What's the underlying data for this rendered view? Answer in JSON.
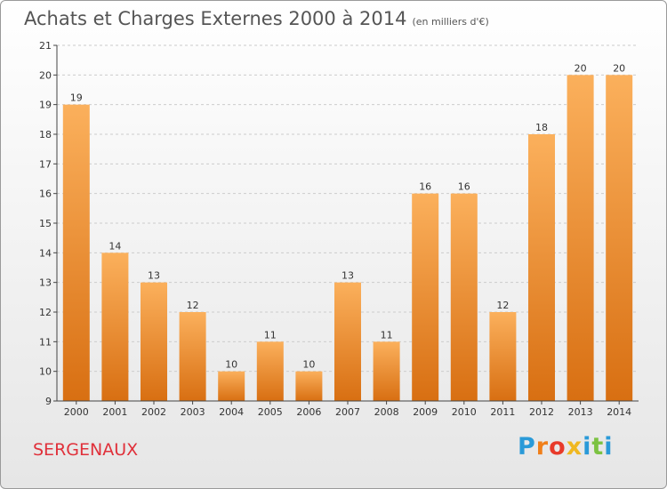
{
  "title": "Achats et Charges Externes 2000 à 2014",
  "subtitle": "(en milliers d'€)",
  "commune": "SERGENAUX",
  "logo": [
    "P",
    "r",
    "o",
    "x",
    "i",
    "t",
    "i"
  ],
  "logo_colors": [
    "#2a9ad8",
    "#f07f1a",
    "#e83a2a",
    "#f0b820",
    "#2a9ad8",
    "#7cc242",
    "#2a9ad8"
  ],
  "colors": {
    "bar_light": "#fbb05c",
    "bar_dark": "#d86f12",
    "axis": "#444444",
    "grid": "#cccccc"
  },
  "chart_data": {
    "type": "bar",
    "title": "Achats et Charges Externes 2000 à 2014",
    "subtitle": "(en milliers d'€)",
    "xlabel": "",
    "ylabel": "",
    "categories": [
      "2000",
      "2001",
      "2002",
      "2003",
      "2004",
      "2005",
      "2006",
      "2007",
      "2008",
      "2009",
      "2010",
      "2011",
      "2012",
      "2013",
      "2014"
    ],
    "values": [
      19,
      14,
      13,
      12,
      10,
      11,
      10,
      13,
      11,
      16,
      16,
      12,
      18,
      20,
      20
    ],
    "ylim": [
      9,
      21
    ],
    "yticks": [
      9,
      10,
      11,
      12,
      13,
      14,
      15,
      16,
      17,
      18,
      19,
      20,
      21
    ],
    "grid": "horizontal dashed",
    "legend": "none"
  }
}
